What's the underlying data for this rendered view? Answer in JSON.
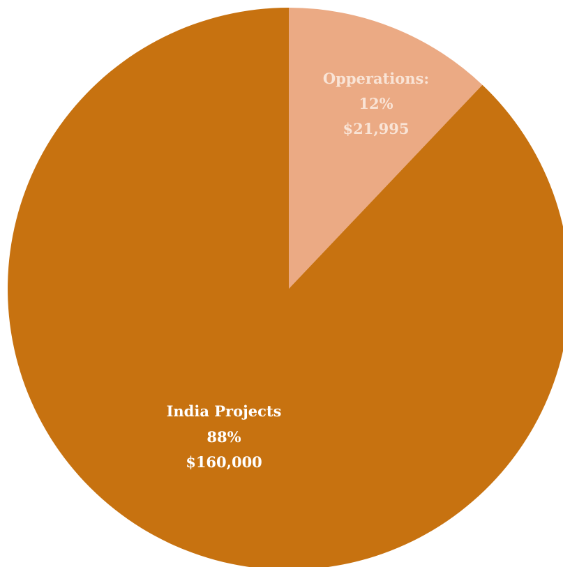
{
  "chart_data": {
    "type": "pie",
    "title": "",
    "start_angle_deg": 0,
    "direction": "clockwise",
    "slices": [
      {
        "key": "operations",
        "label": "Opperations:",
        "percent_label": "12%",
        "value_label": "$21,995",
        "value": 21995,
        "percent": 12,
        "color": "#EBAA84",
        "label_color": "#F9E4D6"
      },
      {
        "key": "india-projects",
        "label": "India Projects",
        "percent_label": "88%",
        "value_label": "$160,000",
        "value": 160000,
        "percent": 88,
        "color": "#C77210",
        "label_color": "#FFFFFF"
      }
    ]
  }
}
